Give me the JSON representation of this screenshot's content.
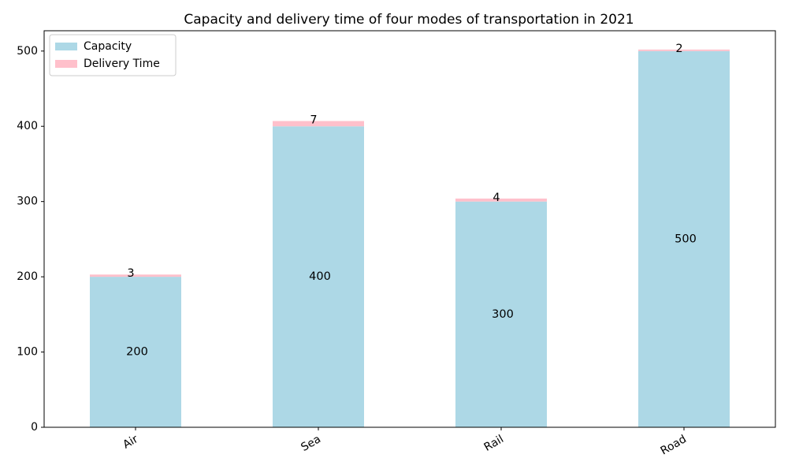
{
  "chart_data": {
    "type": "bar",
    "stacked": true,
    "title": "Capacity and delivery time of four modes of transportation in 2021",
    "xlabel": "",
    "ylabel": "",
    "categories": [
      "Air",
      "Sea",
      "Rail",
      "Road"
    ],
    "series": [
      {
        "name": "Capacity",
        "values": [
          200,
          400,
          300,
          500
        ],
        "color": "#add8e6"
      },
      {
        "name": "Delivery Time",
        "values": [
          3,
          7,
          4,
          2
        ],
        "color": "#ffc0cb"
      }
    ],
    "ylim": [
      0,
      527
    ],
    "yticks": [
      0,
      100,
      200,
      300,
      400,
      500
    ],
    "grid": false,
    "legend_position": "top-left",
    "x_tick_rotation": 30
  }
}
